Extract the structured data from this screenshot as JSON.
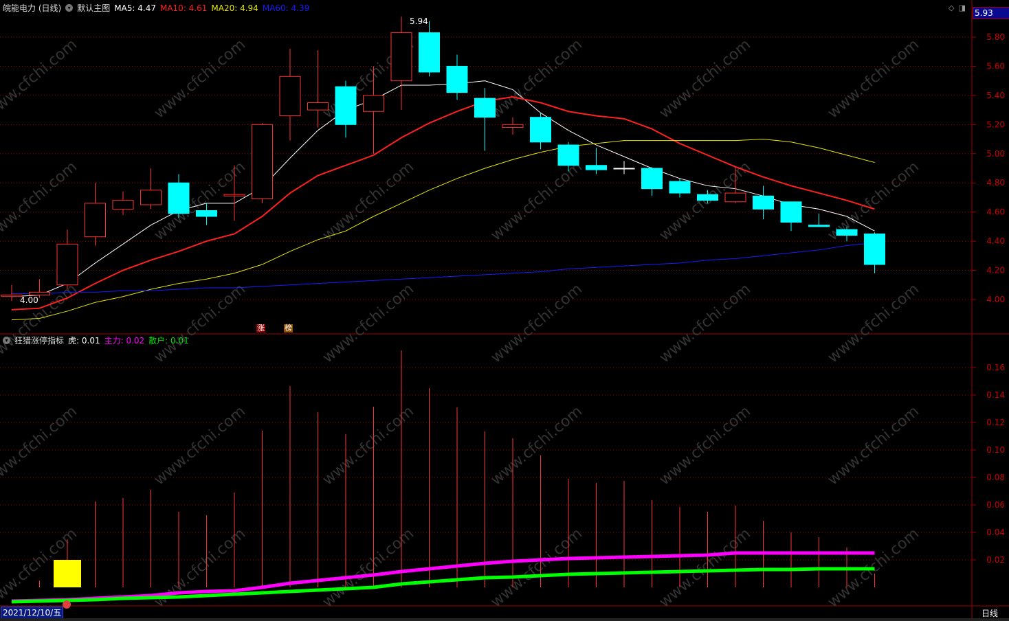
{
  "header": {
    "stock": "皖能电力 (日线)",
    "template": "默认主图",
    "ma5": "MA5: 4.47",
    "ma10": "MA10: 4.61",
    "ma20": "MA20: 4.94",
    "ma60": "MA60: 4.39"
  },
  "indicator": {
    "name": "狂猎涨停指标",
    "hu": "虎: 0.01",
    "zhuli": "主力: 0.02",
    "sanhu": "散户: 0.01"
  },
  "current_price": "5.93",
  "date_label": "2021/12/10/五",
  "period_label": "日线",
  "markers": {
    "zhang": "涨",
    "bang": "榜"
  },
  "watermark": "www.cfchi.com",
  "colors": {
    "up": "#ff3232",
    "down": "#00ffff",
    "ma5": "#ffffff",
    "ma10": "#ff2020",
    "ma20": "#e6e600",
    "ma60": "#1a1aff",
    "zhuli": "#ff00ff",
    "sanhu": "#00ff00",
    "hu": "#ffff00",
    "grid": "#a00000"
  },
  "chart_data": [
    {
      "type": "candlestick",
      "ylim": [
        3.8,
        5.96
      ],
      "yticks": [
        "5.80",
        "5.60",
        "5.40",
        "5.20",
        "5.00",
        "4.80",
        "4.60",
        "4.40",
        "4.20",
        "4.00"
      ],
      "high_label": "5.94",
      "low_label": "4.00",
      "ohlc": [
        [
          4.02,
          4.1,
          3.99,
          4.03
        ],
        [
          4.03,
          4.14,
          4.01,
          4.05
        ],
        [
          4.1,
          4.48,
          4.07,
          4.38
        ],
        [
          4.43,
          4.8,
          4.37,
          4.66
        ],
        [
          4.62,
          4.74,
          4.58,
          4.68
        ],
        [
          4.65,
          4.9,
          4.62,
          4.75
        ],
        [
          4.8,
          4.86,
          4.56,
          4.59
        ],
        [
          4.61,
          4.66,
          4.51,
          4.57
        ],
        [
          4.71,
          4.92,
          4.54,
          4.72
        ],
        [
          4.69,
          5.21,
          4.66,
          5.2
        ],
        [
          5.26,
          5.72,
          5.09,
          5.53
        ],
        [
          5.3,
          5.71,
          5.18,
          5.35
        ],
        [
          5.46,
          5.5,
          5.11,
          5.2
        ],
        [
          5.29,
          5.6,
          5.0,
          5.4
        ],
        [
          5.5,
          5.94,
          5.3,
          5.83
        ],
        [
          5.83,
          5.91,
          5.53,
          5.56
        ],
        [
          5.6,
          5.68,
          5.37,
          5.42
        ],
        [
          5.38,
          5.45,
          5.02,
          5.25
        ],
        [
          5.18,
          5.25,
          5.13,
          5.2
        ],
        [
          5.25,
          5.28,
          5.03,
          5.08
        ],
        [
          5.06,
          5.08,
          4.88,
          4.92
        ],
        [
          4.92,
          5.04,
          4.86,
          4.89
        ],
        [
          4.9,
          4.95,
          4.86,
          4.9
        ],
        [
          4.9,
          4.91,
          4.71,
          4.76
        ],
        [
          4.81,
          4.83,
          4.7,
          4.73
        ],
        [
          4.72,
          4.75,
          4.66,
          4.68
        ],
        [
          4.67,
          4.91,
          4.66,
          4.73
        ],
        [
          4.71,
          4.78,
          4.55,
          4.62
        ],
        [
          4.67,
          4.67,
          4.47,
          4.53
        ],
        [
          4.51,
          4.59,
          4.5,
          4.5
        ],
        [
          4.48,
          4.5,
          4.4,
          4.44
        ],
        [
          4.45,
          4.46,
          4.18,
          4.24
        ]
      ],
      "series": [
        {
          "name": "MA5",
          "values": [
            4.02,
            4.03,
            4.11,
            4.25,
            4.38,
            4.51,
            4.61,
            4.66,
            4.66,
            4.77,
            4.97,
            5.16,
            5.3,
            5.37,
            5.47,
            5.47,
            5.48,
            5.5,
            5.44,
            5.28,
            5.16,
            5.06,
            4.98,
            4.9,
            4.83,
            4.78,
            4.76,
            4.71,
            4.65,
            4.62,
            4.57,
            4.47
          ]
        },
        {
          "name": "MA10",
          "values": [
            3.93,
            3.94,
            4.01,
            4.11,
            4.2,
            4.27,
            4.33,
            4.4,
            4.45,
            4.57,
            4.73,
            4.85,
            4.92,
            4.99,
            5.11,
            5.21,
            5.29,
            5.36,
            5.39,
            5.35,
            5.29,
            5.26,
            5.24,
            5.17,
            5.07,
            4.99,
            4.91,
            4.84,
            4.78,
            4.73,
            4.68,
            4.62
          ]
        },
        {
          "name": "MA20",
          "values": [
            3.86,
            3.87,
            3.92,
            3.98,
            4.02,
            4.07,
            4.11,
            4.14,
            4.18,
            4.24,
            4.33,
            4.41,
            4.47,
            4.57,
            4.66,
            4.75,
            4.83,
            4.9,
            4.96,
            5.01,
            5.05,
            5.07,
            5.09,
            5.09,
            5.09,
            5.09,
            5.09,
            5.1,
            5.08,
            5.04,
            4.99,
            4.94
          ]
        },
        {
          "name": "MA60",
          "values": [
            4.04,
            4.04,
            4.05,
            4.05,
            4.06,
            4.06,
            4.07,
            4.08,
            4.08,
            4.09,
            4.1,
            4.11,
            4.12,
            4.13,
            4.14,
            4.15,
            4.16,
            4.17,
            4.18,
            4.19,
            4.21,
            4.22,
            4.23,
            4.24,
            4.25,
            4.27,
            4.28,
            4.3,
            4.32,
            4.34,
            4.37,
            4.39
          ]
        }
      ]
    },
    {
      "type": "bar+line",
      "ylim": [
        -0.0135,
        0.18
      ],
      "yticks": [
        "0.16",
        "0.14",
        "0.12",
        "0.10",
        "0.08",
        "0.06",
        "0.04",
        "0.02"
      ],
      "bars": [
        0,
        0.005,
        0.035,
        0.0625,
        0.065,
        0.071,
        0.055,
        0.0525,
        0.069,
        0.114,
        0.1465,
        0.1275,
        0.1115,
        0.1315,
        0.1725,
        0.145,
        0.131,
        0.1135,
        0.1085,
        0.096,
        0.079,
        0.076,
        0.0775,
        0.0635,
        0.0585,
        0.055,
        0.0595,
        0.0485,
        0.04,
        0.0365,
        0.029,
        0.01
      ],
      "hu": [
        0,
        0,
        0.02,
        0,
        0,
        0,
        0,
        0,
        0,
        0,
        0,
        0,
        0,
        0,
        0,
        0,
        0,
        0,
        0,
        0,
        0,
        0,
        0,
        0,
        0,
        0,
        0,
        0,
        0,
        0,
        0,
        0
      ],
      "series": [
        {
          "name": "主力",
          "values": [
            -0.01,
            -0.0095,
            -0.009,
            -0.008,
            -0.007,
            -0.006,
            -0.004,
            -0.003,
            -0.0025,
            0.0,
            0.003,
            0.005,
            0.007,
            0.009,
            0.0115,
            0.0135,
            0.0155,
            0.0175,
            0.019,
            0.02,
            0.021,
            0.0215,
            0.022,
            0.0225,
            0.023,
            0.0235,
            0.025,
            0.025,
            0.025,
            0.025,
            0.025,
            0.025
          ]
        },
        {
          "name": "散户",
          "values": [
            -0.0105,
            -0.01,
            -0.0095,
            -0.009,
            -0.008,
            -0.0075,
            -0.007,
            -0.006,
            -0.005,
            -0.004,
            -0.003,
            -0.002,
            -0.001,
            0.0,
            0.0025,
            0.004,
            0.0055,
            0.007,
            0.0075,
            0.0085,
            0.0095,
            0.01,
            0.0105,
            0.011,
            0.0115,
            0.012,
            0.0125,
            0.013,
            0.013,
            0.0135,
            0.0135,
            0.0135
          ]
        }
      ]
    }
  ]
}
